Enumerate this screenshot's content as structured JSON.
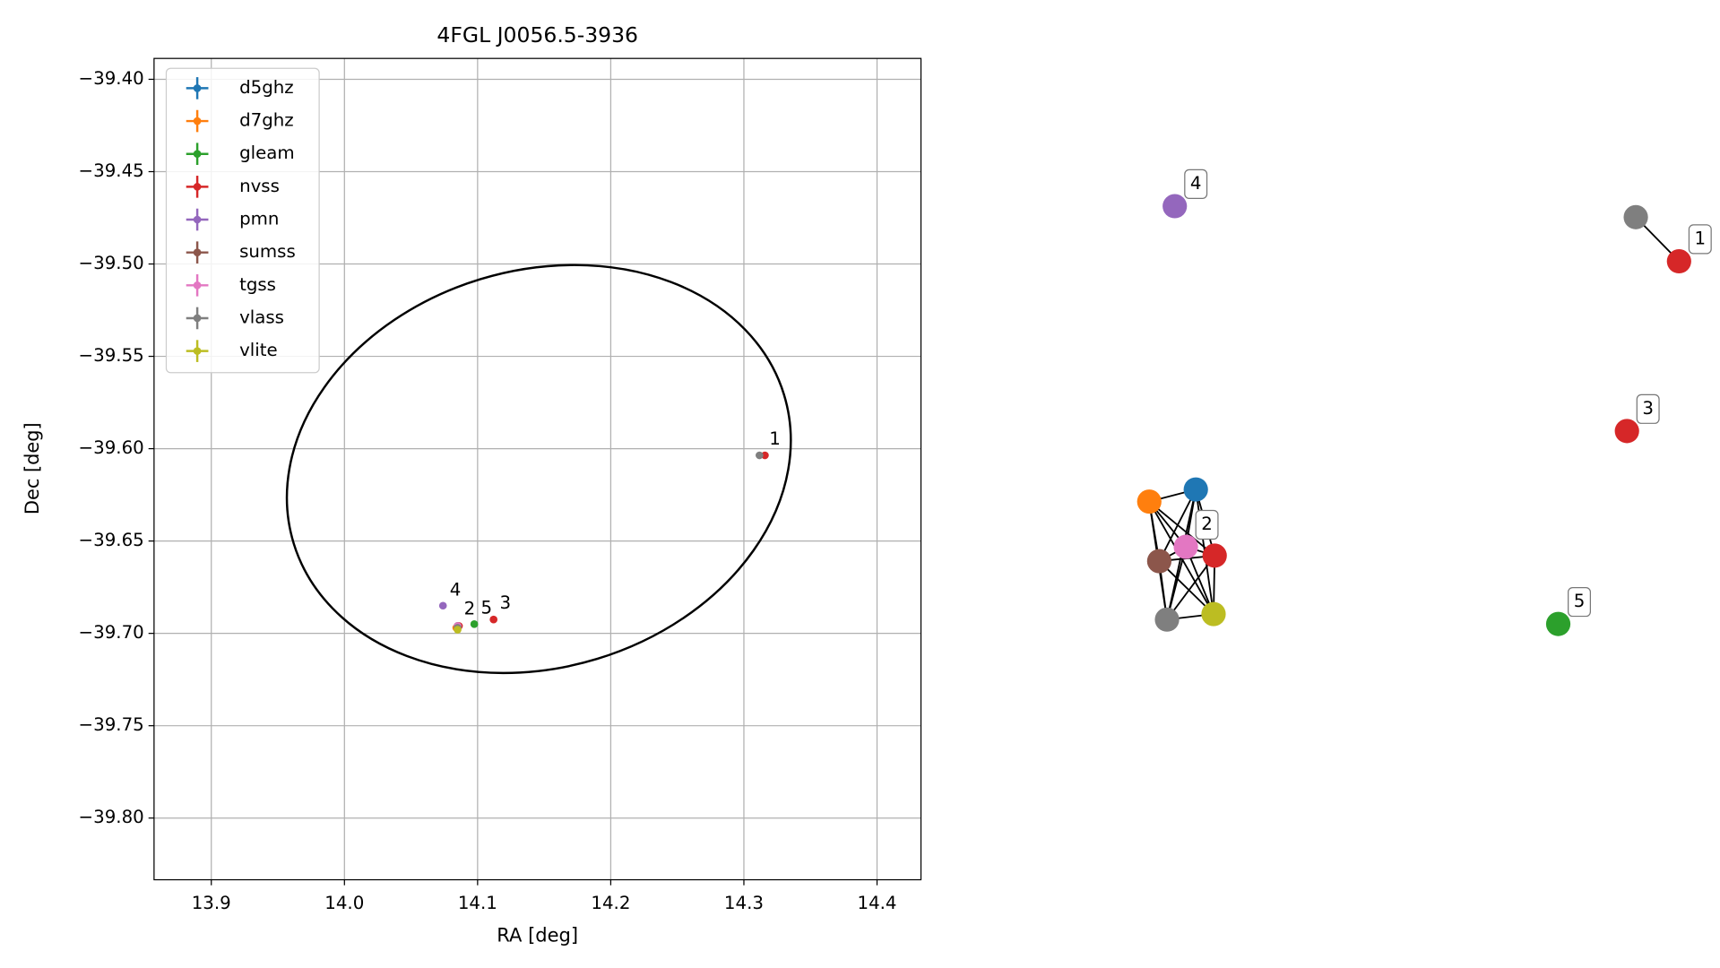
{
  "chart_data": {
    "type": "scatter",
    "title": "4FGL J0056.5-3936",
    "x_label": "RA [deg]",
    "y_label": "Dec [deg]",
    "xlim": [
      13.857,
      14.433
    ],
    "ylim": [
      -39.8334,
      -39.3887
    ],
    "xticks": [
      13.9,
      {
        "value": 14.0,
        "label": "14.0"
      },
      14.1,
      14.2,
      14.3,
      14.4
    ],
    "yticks": [
      {
        "value": -39.4,
        "label": "−39.40"
      },
      {
        "value": -39.45,
        "label": "−39.45"
      },
      {
        "value": -39.5,
        "label": "−39.50"
      },
      {
        "value": -39.55,
        "label": "−39.55"
      },
      {
        "value": -39.6,
        "label": "−39.60"
      },
      {
        "value": -39.65,
        "label": "−39.65"
      },
      {
        "value": -39.7,
        "label": "−39.70"
      },
      {
        "value": -39.75,
        "label": "−39.75"
      },
      {
        "value": -39.8,
        "label": "−39.80"
      }
    ],
    "grid": true,
    "legend": "upper left",
    "series": [
      {
        "name": "d5ghz",
        "color": "#1f77b4",
        "x": [
          14.085
        ],
        "y": [
          -39.696
        ]
      },
      {
        "name": "d7ghz",
        "color": "#ff7f0e",
        "x": [
          14.084
        ],
        "y": [
          -39.697
        ]
      },
      {
        "name": "gleam",
        "color": "#2ca02c",
        "x": [
          14.0975
        ],
        "y": [
          -39.695
        ]
      },
      {
        "name": "nvss",
        "color": "#d62728",
        "x": [
          14.3158,
          14.112,
          14.086
        ],
        "y": [
          -39.6036,
          -39.6925,
          -39.696
        ]
      },
      {
        "name": "pmn",
        "color": "#9467bd",
        "x": [
          14.074
        ],
        "y": [
          -39.685
        ]
      },
      {
        "name": "sumss",
        "color": "#8c564b",
        "x": [
          14.085
        ],
        "y": [
          -39.696
        ]
      },
      {
        "name": "tgss",
        "color": "#e377c2",
        "x": [
          14.085
        ],
        "y": [
          -39.696
        ]
      },
      {
        "name": "vlass",
        "color": "#7f7f7f",
        "x": [
          14.3117,
          14.085
        ],
        "y": [
          -39.6036,
          -39.697
        ]
      },
      {
        "name": "vlite",
        "color": "#bcbd22",
        "x": [
          14.085
        ],
        "y": [
          -39.698
        ]
      }
    ],
    "annotations": [
      {
        "text": "1",
        "x": 14.3233,
        "y": -39.595
      },
      {
        "text": "2",
        "x": 14.094,
        "y": -39.687
      },
      {
        "text": "5",
        "x": 14.1067,
        "y": -39.6866
      },
      {
        "text": "3",
        "x": 14.1208,
        "y": -39.684
      },
      {
        "text": "4",
        "x": 14.0833,
        "y": -39.677
      }
    ],
    "ellipse": {
      "center": [
        14.146,
        -39.611
      ],
      "width": 0.385,
      "height": 0.215,
      "angle": 17,
      "color": "#000000"
    }
  },
  "graph": {
    "nodes": [
      {
        "color": "#7f7f7f"
      },
      {
        "color": "#d62728",
        "label": "1"
      },
      {
        "color": "#9467bd",
        "label": "4"
      },
      {
        "color": "#d62728",
        "label": "3"
      },
      {
        "color": "#2ca02c",
        "label": "5"
      },
      {
        "color": "#1f77b4"
      },
      {
        "color": "#ff7f0e"
      },
      {
        "color": "#e377c2",
        "label": "2"
      },
      {
        "color": "#d62728"
      },
      {
        "color": "#8c564b"
      },
      {
        "color": "#7f7f7f"
      },
      {
        "color": "#bcbd22"
      }
    ],
    "edges": [
      [
        0,
        1
      ],
      [
        5,
        6
      ],
      [
        5,
        7
      ],
      [
        5,
        8
      ],
      [
        5,
        9
      ],
      [
        5,
        10
      ],
      [
        5,
        11
      ],
      [
        6,
        7
      ],
      [
        6,
        8
      ],
      [
        6,
        9
      ],
      [
        6,
        10
      ],
      [
        6,
        11
      ],
      [
        7,
        8
      ],
      [
        7,
        9
      ],
      [
        7,
        10
      ],
      [
        7,
        11
      ],
      [
        8,
        9
      ],
      [
        8,
        10
      ],
      [
        8,
        11
      ],
      [
        9,
        10
      ],
      [
        9,
        11
      ],
      [
        10,
        11
      ]
    ]
  }
}
